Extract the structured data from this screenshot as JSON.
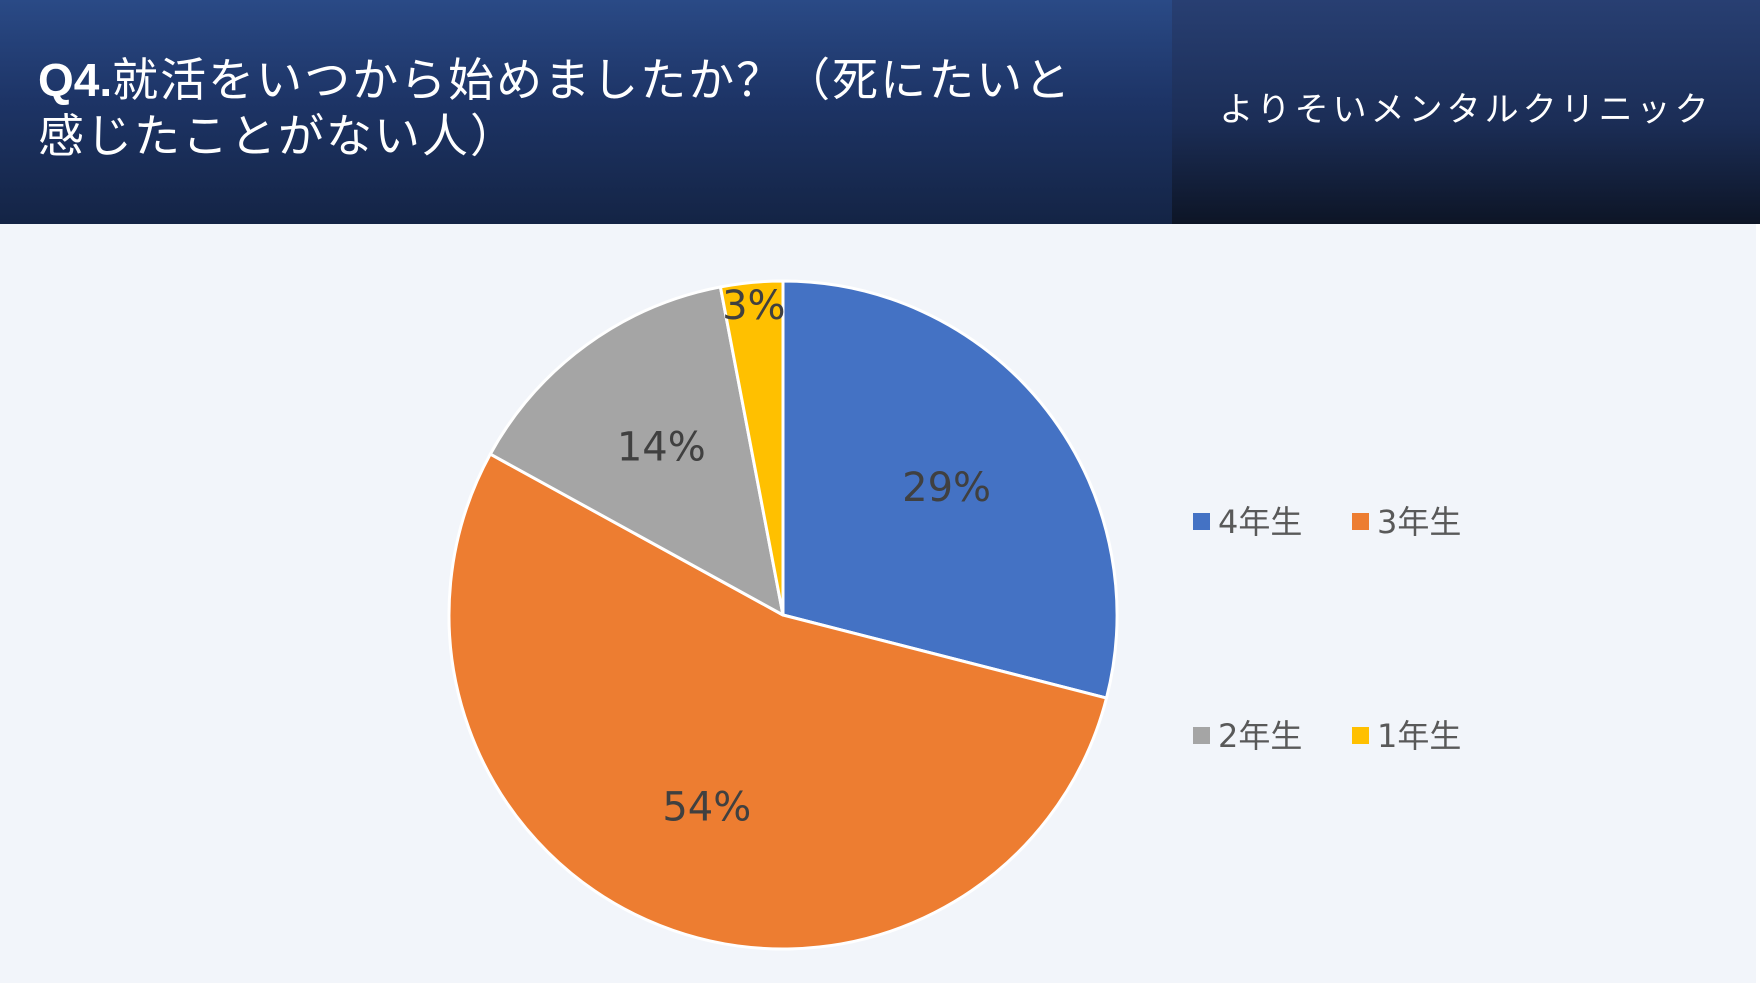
{
  "header": {
    "title_prefix": "Q4.",
    "title_text": "就活をいつから始めましたか？（死にたいと感じたことがない人）",
    "clinic_name": "よりそいメンタルクリニック"
  },
  "chart_data": {
    "type": "pie",
    "title": "Q4.就活をいつから始めましたか？（死にたいと感じたことがない人）",
    "categories": [
      "4年生",
      "3年生",
      "2年生",
      "1年生"
    ],
    "values": [
      29,
      54,
      14,
      3
    ],
    "labels": [
      "29%",
      "54%",
      "14%",
      "3%"
    ],
    "colors": [
      "#4472c4",
      "#ed7d31",
      "#a5a5a5",
      "#ffc000"
    ],
    "start_angle": "12 o'clock",
    "direction": "clockwise",
    "legend_position": "right",
    "legend_layout": "2x2 grid"
  },
  "colors": {
    "header_dark": "#142445",
    "background": "#f2f5fa",
    "label_text": "#404040",
    "legend_text": "#595959"
  }
}
